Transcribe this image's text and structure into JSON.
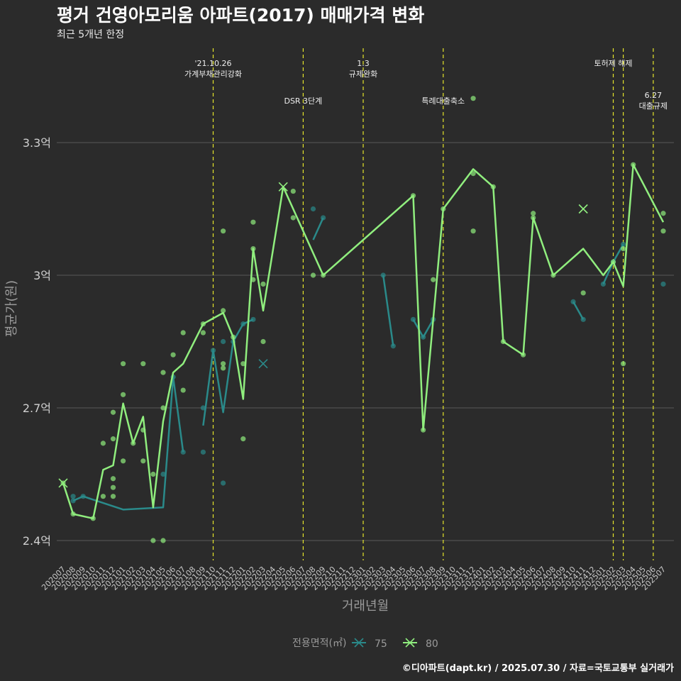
{
  "title": "평거 건영아모리움 아파트(2017) 매매가격 변화",
  "subtitle": "최근 5개년 한정",
  "caption": "©디아파트(dapt.kr) / 2025.07.30 / 자료=국토교통부 실거래가",
  "colors": {
    "background": "#2b2b2b",
    "grid": "#5a5a5a",
    "text": "#d0d0d0",
    "event_line": "#e5e52b",
    "series_75": "#2a8a8a",
    "series_80": "#90ee7e"
  },
  "chart_data": {
    "type": "line",
    "xlabel": "거래년월",
    "ylabel": "평균가(원)",
    "ylim": [
      2.36,
      3.62
    ],
    "y_unit": "억",
    "y_ticks": [
      {
        "value": 2.4,
        "label": "2.4억"
      },
      {
        "value": 2.7,
        "label": "2.7억"
      },
      {
        "value": 3.0,
        "label": "3억"
      },
      {
        "value": 3.3,
        "label": "3.3억"
      }
    ],
    "categories": [
      "202007",
      "202008",
      "202009",
      "202010",
      "202011",
      "202012",
      "202101",
      "202102",
      "202103",
      "202104",
      "202105",
      "202106",
      "202107",
      "202108",
      "202109",
      "202110",
      "202111",
      "202112",
      "202201",
      "202202",
      "202203",
      "202204",
      "202205",
      "202206",
      "202207",
      "202208",
      "202209",
      "202210",
      "202211",
      "202212",
      "202301",
      "202302",
      "202303",
      "202304",
      "202305",
      "202306",
      "202307",
      "202308",
      "202309",
      "202310",
      "202311",
      "202312",
      "202401",
      "202402",
      "202403",
      "202404",
      "202405",
      "202406",
      "202407",
      "202408",
      "202409",
      "202410",
      "202411",
      "202412",
      "202501",
      "202502",
      "202503",
      "202504",
      "202505",
      "202506",
      "202507"
    ],
    "legend": {
      "title": "전용면적(㎡)",
      "position": "bottom",
      "entries": [
        "75",
        "80"
      ]
    },
    "series": [
      {
        "name": "75",
        "line": [
          {
            "x": "202008",
            "y": 2.49
          },
          {
            "x": "202009",
            "y": 2.5
          },
          {
            "x": "202101",
            "y": 2.47
          },
          {
            "x": "202105",
            "y": 2.475
          },
          {
            "x": "202106",
            "y": 2.77
          },
          {
            "x": "202107",
            "y": 2.6
          },
          null,
          {
            "x": "202109",
            "y": 2.66
          },
          {
            "x": "202110",
            "y": 2.83
          },
          {
            "x": "202111",
            "y": 2.69
          },
          {
            "x": "202112",
            "y": 2.85
          },
          {
            "x": "202201",
            "y": 2.89
          },
          {
            "x": "202202",
            "y": 2.9
          },
          null,
          {
            "x": "202208",
            "y": 3.08
          },
          {
            "x": "202209",
            "y": 3.13
          },
          null,
          {
            "x": "202303",
            "y": 3.0
          },
          {
            "x": "202304",
            "y": 2.84
          },
          null,
          {
            "x": "202306",
            "y": 2.9
          },
          {
            "x": "202307",
            "y": 2.86
          },
          {
            "x": "202308",
            "y": 2.9
          },
          null,
          {
            "x": "202410",
            "y": 2.94
          },
          {
            "x": "202411",
            "y": 2.9
          },
          null,
          {
            "x": "202501",
            "y": 2.98
          },
          {
            "x": "202502",
            "y": 3.03
          },
          {
            "x": "202503",
            "y": 3.07
          }
        ],
        "points": [
          {
            "x": "202008",
            "y": 2.49
          },
          {
            "x": "202008",
            "y": 2.5
          },
          {
            "x": "202009",
            "y": 2.5
          },
          {
            "x": "202106",
            "y": 2.77
          },
          {
            "x": "202107",
            "y": 2.6
          },
          {
            "x": "202105",
            "y": 2.55
          },
          {
            "x": "202109",
            "y": 2.6
          },
          {
            "x": "202109",
            "y": 2.7
          },
          {
            "x": "202110",
            "y": 2.83
          },
          {
            "x": "202111",
            "y": 2.53
          },
          {
            "x": "202111",
            "y": 2.85
          },
          {
            "x": "202112",
            "y": 2.85
          },
          {
            "x": "202201",
            "y": 2.89
          },
          {
            "x": "202202",
            "y": 2.9
          },
          {
            "x": "202208",
            "y": 3.15
          },
          {
            "x": "202209",
            "y": 3.13
          },
          {
            "x": "202303",
            "y": 3.0
          },
          {
            "x": "202304",
            "y": 2.84
          },
          {
            "x": "202306",
            "y": 2.9
          },
          {
            "x": "202307",
            "y": 2.86
          },
          {
            "x": "202308",
            "y": 2.9
          },
          {
            "x": "202410",
            "y": 2.94
          },
          {
            "x": "202411",
            "y": 2.9
          },
          {
            "x": "202501",
            "y": 2.98
          },
          {
            "x": "202502",
            "y": 3.03
          },
          {
            "x": "202503",
            "y": 3.07
          },
          {
            "x": "202507",
            "y": 2.98
          }
        ],
        "cross_points": [
          {
            "x": "202203",
            "y": 2.8
          }
        ]
      },
      {
        "name": "80",
        "line": [
          {
            "x": "202007",
            "y": 2.53
          },
          {
            "x": "202008",
            "y": 2.46
          },
          {
            "x": "202010",
            "y": 2.45
          },
          {
            "x": "202011",
            "y": 2.56
          },
          {
            "x": "202012",
            "y": 2.57
          },
          {
            "x": "202101",
            "y": 2.71
          },
          {
            "x": "202102",
            "y": 2.62
          },
          {
            "x": "202103",
            "y": 2.68
          },
          {
            "x": "202104",
            "y": 2.475
          },
          {
            "x": "202105",
            "y": 2.67
          },
          {
            "x": "202106",
            "y": 2.78
          },
          {
            "x": "202107",
            "y": 2.8
          },
          {
            "x": "202109",
            "y": 2.89
          },
          {
            "x": "202111",
            "y": 2.915
          },
          {
            "x": "202112",
            "y": 2.86
          },
          {
            "x": "202201",
            "y": 2.72
          },
          {
            "x": "202202",
            "y": 3.06
          },
          {
            "x": "202203",
            "y": 2.92
          },
          {
            "x": "202205",
            "y": 3.2
          },
          {
            "x": "202209",
            "y": 3.0
          },
          {
            "x": "202306",
            "y": 3.18
          },
          {
            "x": "202307",
            "y": 2.65
          },
          {
            "x": "202309",
            "y": 3.15
          },
          {
            "x": "202312",
            "y": 3.24
          },
          {
            "x": "202402",
            "y": 3.2
          },
          {
            "x": "202403",
            "y": 2.85
          },
          {
            "x": "202405",
            "y": 2.82
          },
          {
            "x": "202406",
            "y": 3.13
          },
          {
            "x": "202408",
            "y": 3.0
          },
          {
            "x": "202411",
            "y": 3.06
          },
          {
            "x": "202501",
            "y": 3.0
          },
          {
            "x": "202502",
            "y": 3.03
          },
          {
            "x": "202503",
            "y": 2.975
          },
          {
            "x": "202504",
            "y": 3.25
          },
          {
            "x": "202507",
            "y": 3.12
          }
        ],
        "points": [
          {
            "x": "202007",
            "y": 2.53
          },
          {
            "x": "202008",
            "y": 2.46
          },
          {
            "x": "202010",
            "y": 2.45
          },
          {
            "x": "202011",
            "y": 2.5
          },
          {
            "x": "202011",
            "y": 2.62
          },
          {
            "x": "202012",
            "y": 2.5
          },
          {
            "x": "202012",
            "y": 2.52
          },
          {
            "x": "202012",
            "y": 2.54
          },
          {
            "x": "202012",
            "y": 2.63
          },
          {
            "x": "202012",
            "y": 2.69
          },
          {
            "x": "202101",
            "y": 2.58
          },
          {
            "x": "202101",
            "y": 2.73
          },
          {
            "x": "202101",
            "y": 2.8
          },
          {
            "x": "202102",
            "y": 2.62
          },
          {
            "x": "202103",
            "y": 2.58
          },
          {
            "x": "202103",
            "y": 2.65
          },
          {
            "x": "202103",
            "y": 2.8
          },
          {
            "x": "202104",
            "y": 2.4
          },
          {
            "x": "202104",
            "y": 2.55
          },
          {
            "x": "202105",
            "y": 2.4
          },
          {
            "x": "202105",
            "y": 2.7
          },
          {
            "x": "202105",
            "y": 2.78
          },
          {
            "x": "202106",
            "y": 2.82
          },
          {
            "x": "202107",
            "y": 2.74
          },
          {
            "x": "202107",
            "y": 2.87
          },
          {
            "x": "202109",
            "y": 2.87
          },
          {
            "x": "202109",
            "y": 2.89
          },
          {
            "x": "202111",
            "y": 2.79
          },
          {
            "x": "202111",
            "y": 2.8
          },
          {
            "x": "202111",
            "y": 2.92
          },
          {
            "x": "202111",
            "y": 3.1
          },
          {
            "x": "202112",
            "y": 2.86
          },
          {
            "x": "202201",
            "y": 2.63
          },
          {
            "x": "202201",
            "y": 2.8
          },
          {
            "x": "202202",
            "y": 2.99
          },
          {
            "x": "202202",
            "y": 3.06
          },
          {
            "x": "202202",
            "y": 3.12
          },
          {
            "x": "202203",
            "y": 2.85
          },
          {
            "x": "202203",
            "y": 2.98
          },
          {
            "x": "202206",
            "y": 3.19
          },
          {
            "x": "202206",
            "y": 3.13
          },
          {
            "x": "202208",
            "y": 3.0
          },
          {
            "x": "202209",
            "y": 3.0
          },
          {
            "x": "202306",
            "y": 3.18
          },
          {
            "x": "202307",
            "y": 2.65
          },
          {
            "x": "202308",
            "y": 2.99
          },
          {
            "x": "202309",
            "y": 3.15
          },
          {
            "x": "202312",
            "y": 3.4
          },
          {
            "x": "202312",
            "y": 3.1
          },
          {
            "x": "202312",
            "y": 3.23
          },
          {
            "x": "202402",
            "y": 3.2
          },
          {
            "x": "202403",
            "y": 2.85
          },
          {
            "x": "202405",
            "y": 2.82
          },
          {
            "x": "202406",
            "y": 3.13
          },
          {
            "x": "202406",
            "y": 3.14
          },
          {
            "x": "202408",
            "y": 3.0
          },
          {
            "x": "202411",
            "y": 2.96
          },
          {
            "x": "202502",
            "y": 3.03
          },
          {
            "x": "202503",
            "y": 3.06
          },
          {
            "x": "202503",
            "y": 2.8
          },
          {
            "x": "202504",
            "y": 3.25
          },
          {
            "x": "202507",
            "y": 3.14
          },
          {
            "x": "202507",
            "y": 3.1
          }
        ],
        "cross_points": [
          {
            "x": "202007",
            "y": 2.53
          },
          {
            "x": "202205",
            "y": 3.2
          },
          {
            "x": "202411",
            "y": 3.15
          }
        ]
      }
    ],
    "events": [
      {
        "x": "202110",
        "lines": [
          "'21.10.26",
          "가계부채관리강화"
        ],
        "row": 1
      },
      {
        "x": "202207",
        "lines": [
          "DSR 3단계"
        ],
        "row": 2
      },
      {
        "x": "202301",
        "lines": [
          "1.3",
          "규제완화"
        ],
        "row": 1
      },
      {
        "x": "202309",
        "lines": [
          "특례대출축소"
        ],
        "row": 2
      },
      {
        "x": "202502",
        "lines": [
          "토허제 해제"
        ],
        "row": 1
      },
      {
        "x": "202503",
        "lines": [],
        "row": 1
      },
      {
        "x": "202506",
        "lines": [
          "6.27",
          "대출규제"
        ],
        "row": 3
      }
    ]
  }
}
